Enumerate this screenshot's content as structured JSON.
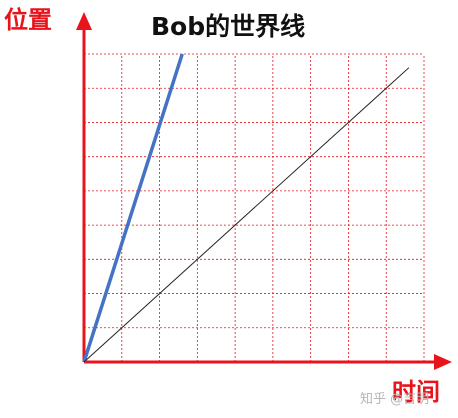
{
  "chart_data": {
    "type": "line",
    "title": "Bob的世界线",
    "xlabel": "时间",
    "ylabel": "位置",
    "grid": true,
    "xlim": [
      0,
      9
    ],
    "ylim": [
      0,
      9
    ],
    "series": [
      {
        "name": "",
        "x": [
          0,
          2.6
        ],
        "y": [
          0,
          9
        ],
        "color": "#4472c4"
      },
      {
        "name": "",
        "x": [
          0,
          8.6
        ],
        "y": [
          0,
          8.6
        ],
        "color": "#222222"
      }
    ],
    "colors": {
      "axis": "#e8141b",
      "grid": "#e8141b"
    }
  },
  "watermark": "知乎 @吉明"
}
